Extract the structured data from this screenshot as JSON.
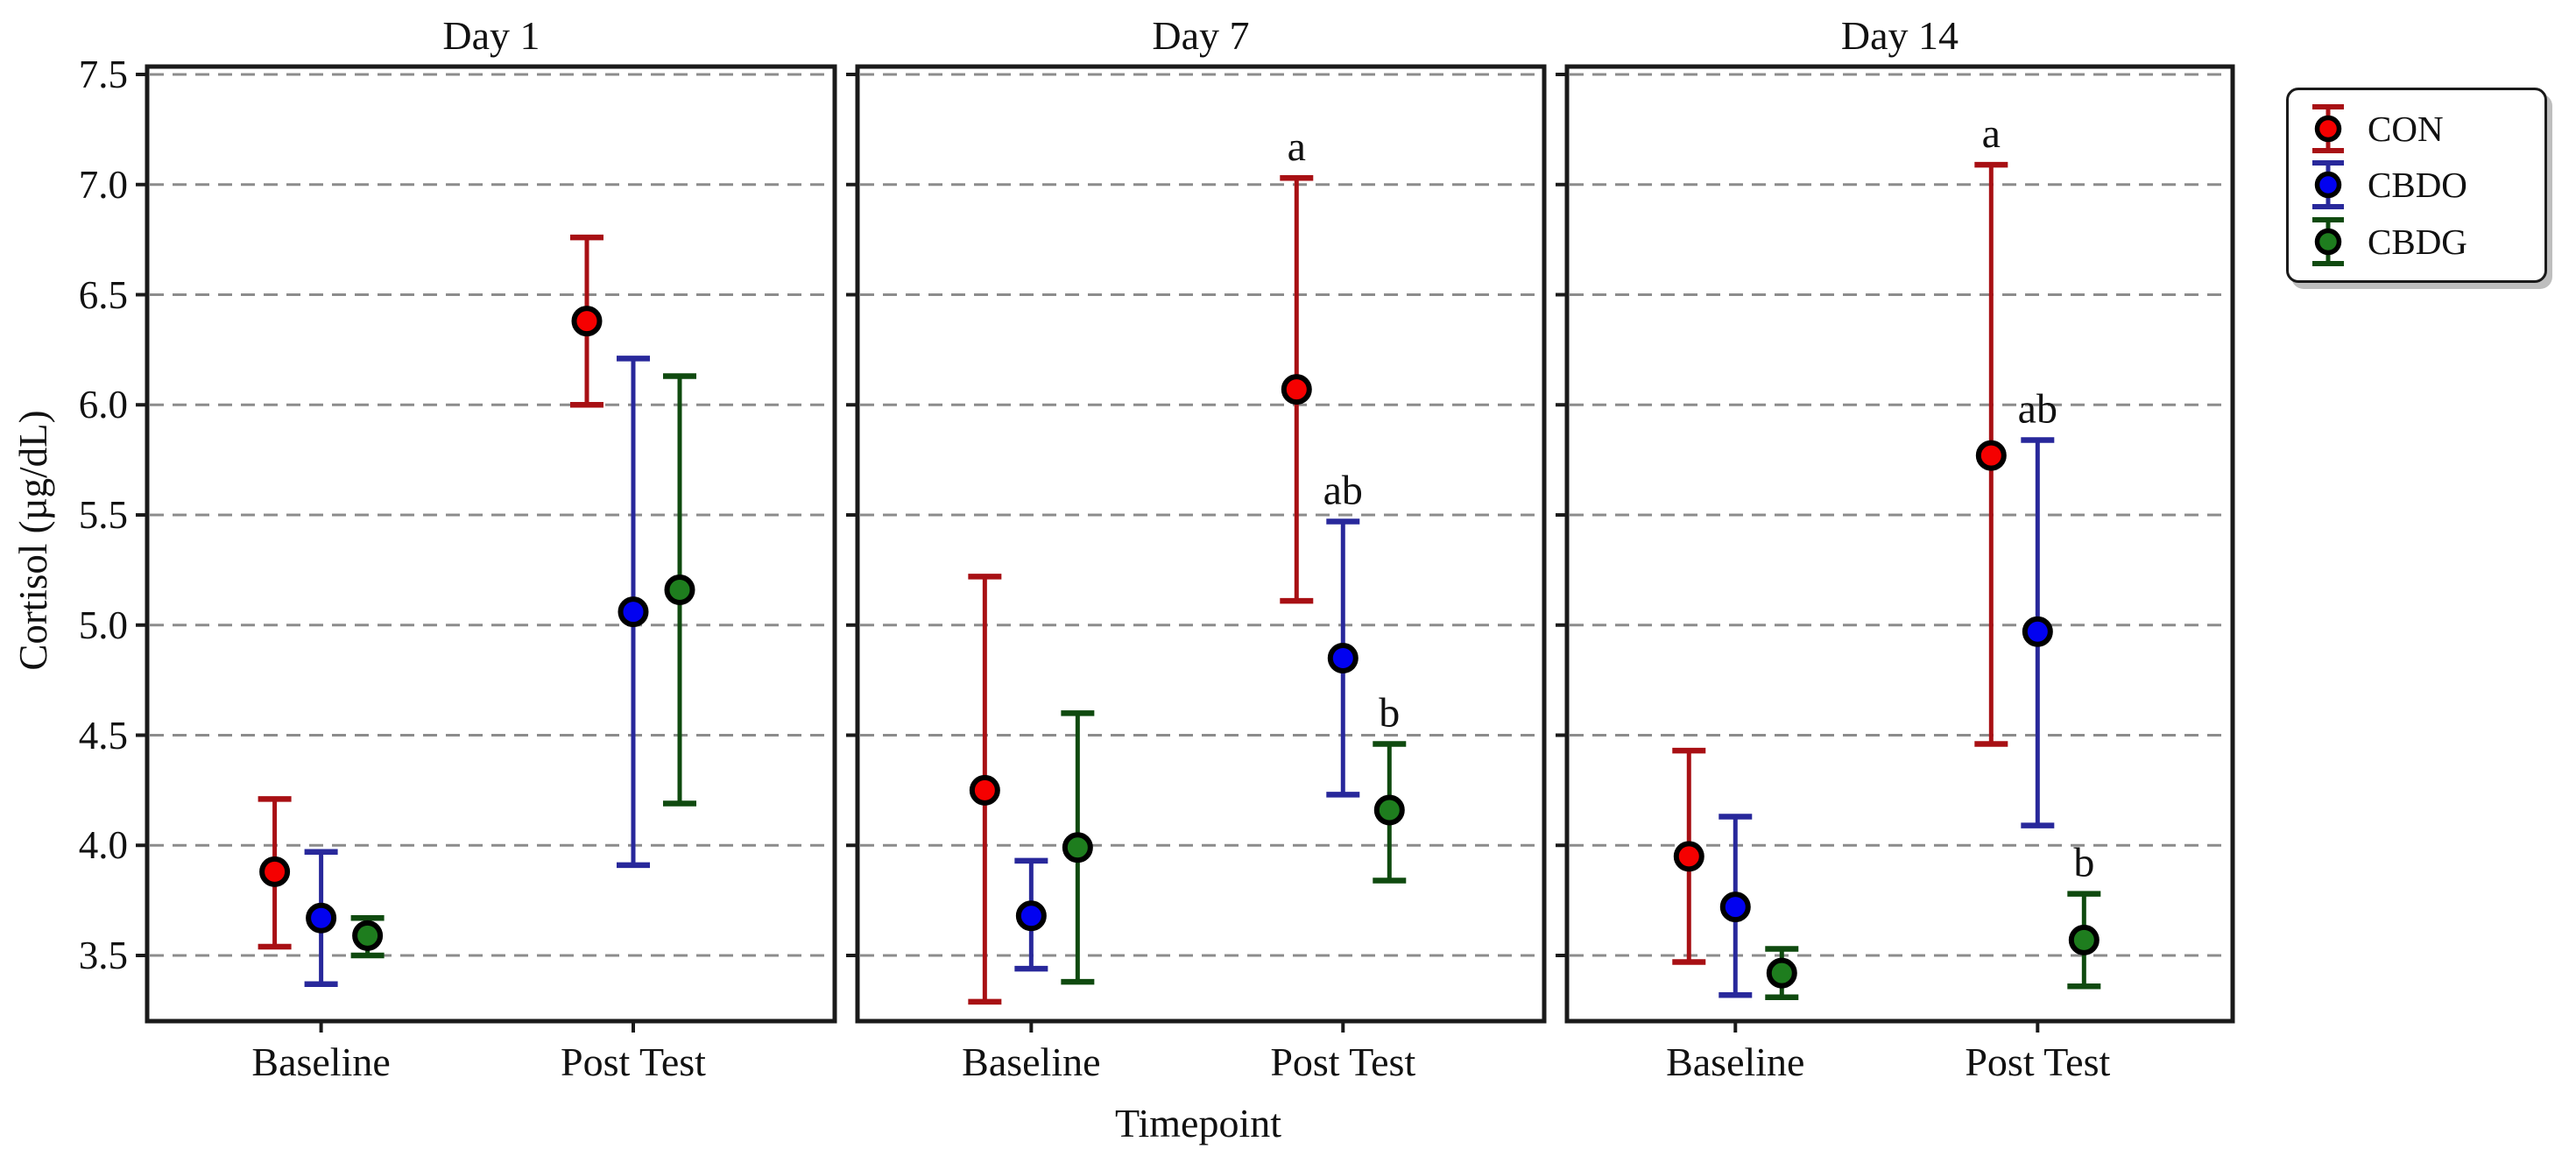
{
  "figure": {
    "background": "#ffffff",
    "frame_color": "#1a1a1a",
    "text_color": "#111111"
  },
  "chart_data": {
    "type": "scatter",
    "variant": "grouped-point-errorbar",
    "title": "",
    "xlabel": "Timepoint",
    "ylabel": "Cortisol (µg/dL)",
    "categories": [
      "Baseline",
      "Post Test"
    ],
    "yticks": [
      7.5,
      7.0,
      6.5,
      6.0,
      5.5,
      5.0,
      4.5,
      4.0,
      3.5
    ],
    "ylim": [
      3.2,
      7.52
    ],
    "grid": {
      "axis": "y",
      "style": "dashed",
      "color": "#8c8c8c"
    },
    "legend_position": "outside upper right",
    "groups": [
      {
        "name": "CON",
        "marker_color": "#f50000",
        "bar_color": "#a81014"
      },
      {
        "name": "CBDO",
        "marker_color": "#0202f0",
        "bar_color": "#28289b"
      },
      {
        "name": "CBDG",
        "marker_color": "#1e7d1e",
        "bar_color": "#0f4a0f"
      }
    ],
    "panels": [
      {
        "title": "Day 1",
        "series": [
          {
            "name": "CON",
            "points": [
              {
                "category": "Baseline",
                "mean": 3.88,
                "err_lo": 3.54,
                "err_hi": 4.21,
                "annotation": ""
              },
              {
                "category": "Post Test",
                "mean": 6.38,
                "err_lo": 6.0,
                "err_hi": 6.76,
                "annotation": ""
              }
            ]
          },
          {
            "name": "CBDO",
            "points": [
              {
                "category": "Baseline",
                "mean": 3.67,
                "err_lo": 3.37,
                "err_hi": 3.97,
                "annotation": ""
              },
              {
                "category": "Post Test",
                "mean": 5.06,
                "err_lo": 3.91,
                "err_hi": 6.21,
                "annotation": ""
              }
            ]
          },
          {
            "name": "CBDG",
            "points": [
              {
                "category": "Baseline",
                "mean": 3.59,
                "err_lo": 3.5,
                "err_hi": 3.67,
                "annotation": ""
              },
              {
                "category": "Post Test",
                "mean": 5.16,
                "err_lo": 4.19,
                "err_hi": 6.13,
                "annotation": ""
              }
            ]
          }
        ]
      },
      {
        "title": "Day 7",
        "series": [
          {
            "name": "CON",
            "points": [
              {
                "category": "Baseline",
                "mean": 4.25,
                "err_lo": 3.29,
                "err_hi": 5.22,
                "annotation": ""
              },
              {
                "category": "Post Test",
                "mean": 6.07,
                "err_lo": 5.11,
                "err_hi": 7.03,
                "annotation": "a"
              }
            ]
          },
          {
            "name": "CBDO",
            "points": [
              {
                "category": "Baseline",
                "mean": 3.68,
                "err_lo": 3.44,
                "err_hi": 3.93,
                "annotation": ""
              },
              {
                "category": "Post Test",
                "mean": 4.85,
                "err_lo": 4.23,
                "err_hi": 5.47,
                "annotation": "ab"
              }
            ]
          },
          {
            "name": "CBDG",
            "points": [
              {
                "category": "Baseline",
                "mean": 3.99,
                "err_lo": 3.38,
                "err_hi": 4.6,
                "annotation": ""
              },
              {
                "category": "Post Test",
                "mean": 4.16,
                "err_lo": 3.84,
                "err_hi": 4.46,
                "annotation": "b"
              }
            ]
          }
        ]
      },
      {
        "title": "Day 14",
        "series": [
          {
            "name": "CON",
            "points": [
              {
                "category": "Baseline",
                "mean": 3.95,
                "err_lo": 3.47,
                "err_hi": 4.43,
                "annotation": ""
              },
              {
                "category": "Post Test",
                "mean": 5.77,
                "err_lo": 4.46,
                "err_hi": 7.09,
                "annotation": "a"
              }
            ]
          },
          {
            "name": "CBDO",
            "points": [
              {
                "category": "Baseline",
                "mean": 3.72,
                "err_lo": 3.32,
                "err_hi": 4.13,
                "annotation": ""
              },
              {
                "category": "Post Test",
                "mean": 4.97,
                "err_lo": 4.09,
                "err_hi": 5.84,
                "annotation": "ab"
              }
            ]
          },
          {
            "name": "CBDG",
            "points": [
              {
                "category": "Baseline",
                "mean": 3.42,
                "err_lo": 3.31,
                "err_hi": 3.53,
                "annotation": ""
              },
              {
                "category": "Post Test",
                "mean": 3.57,
                "err_lo": 3.36,
                "err_hi": 3.78,
                "annotation": "b"
              }
            ]
          }
        ]
      }
    ]
  }
}
